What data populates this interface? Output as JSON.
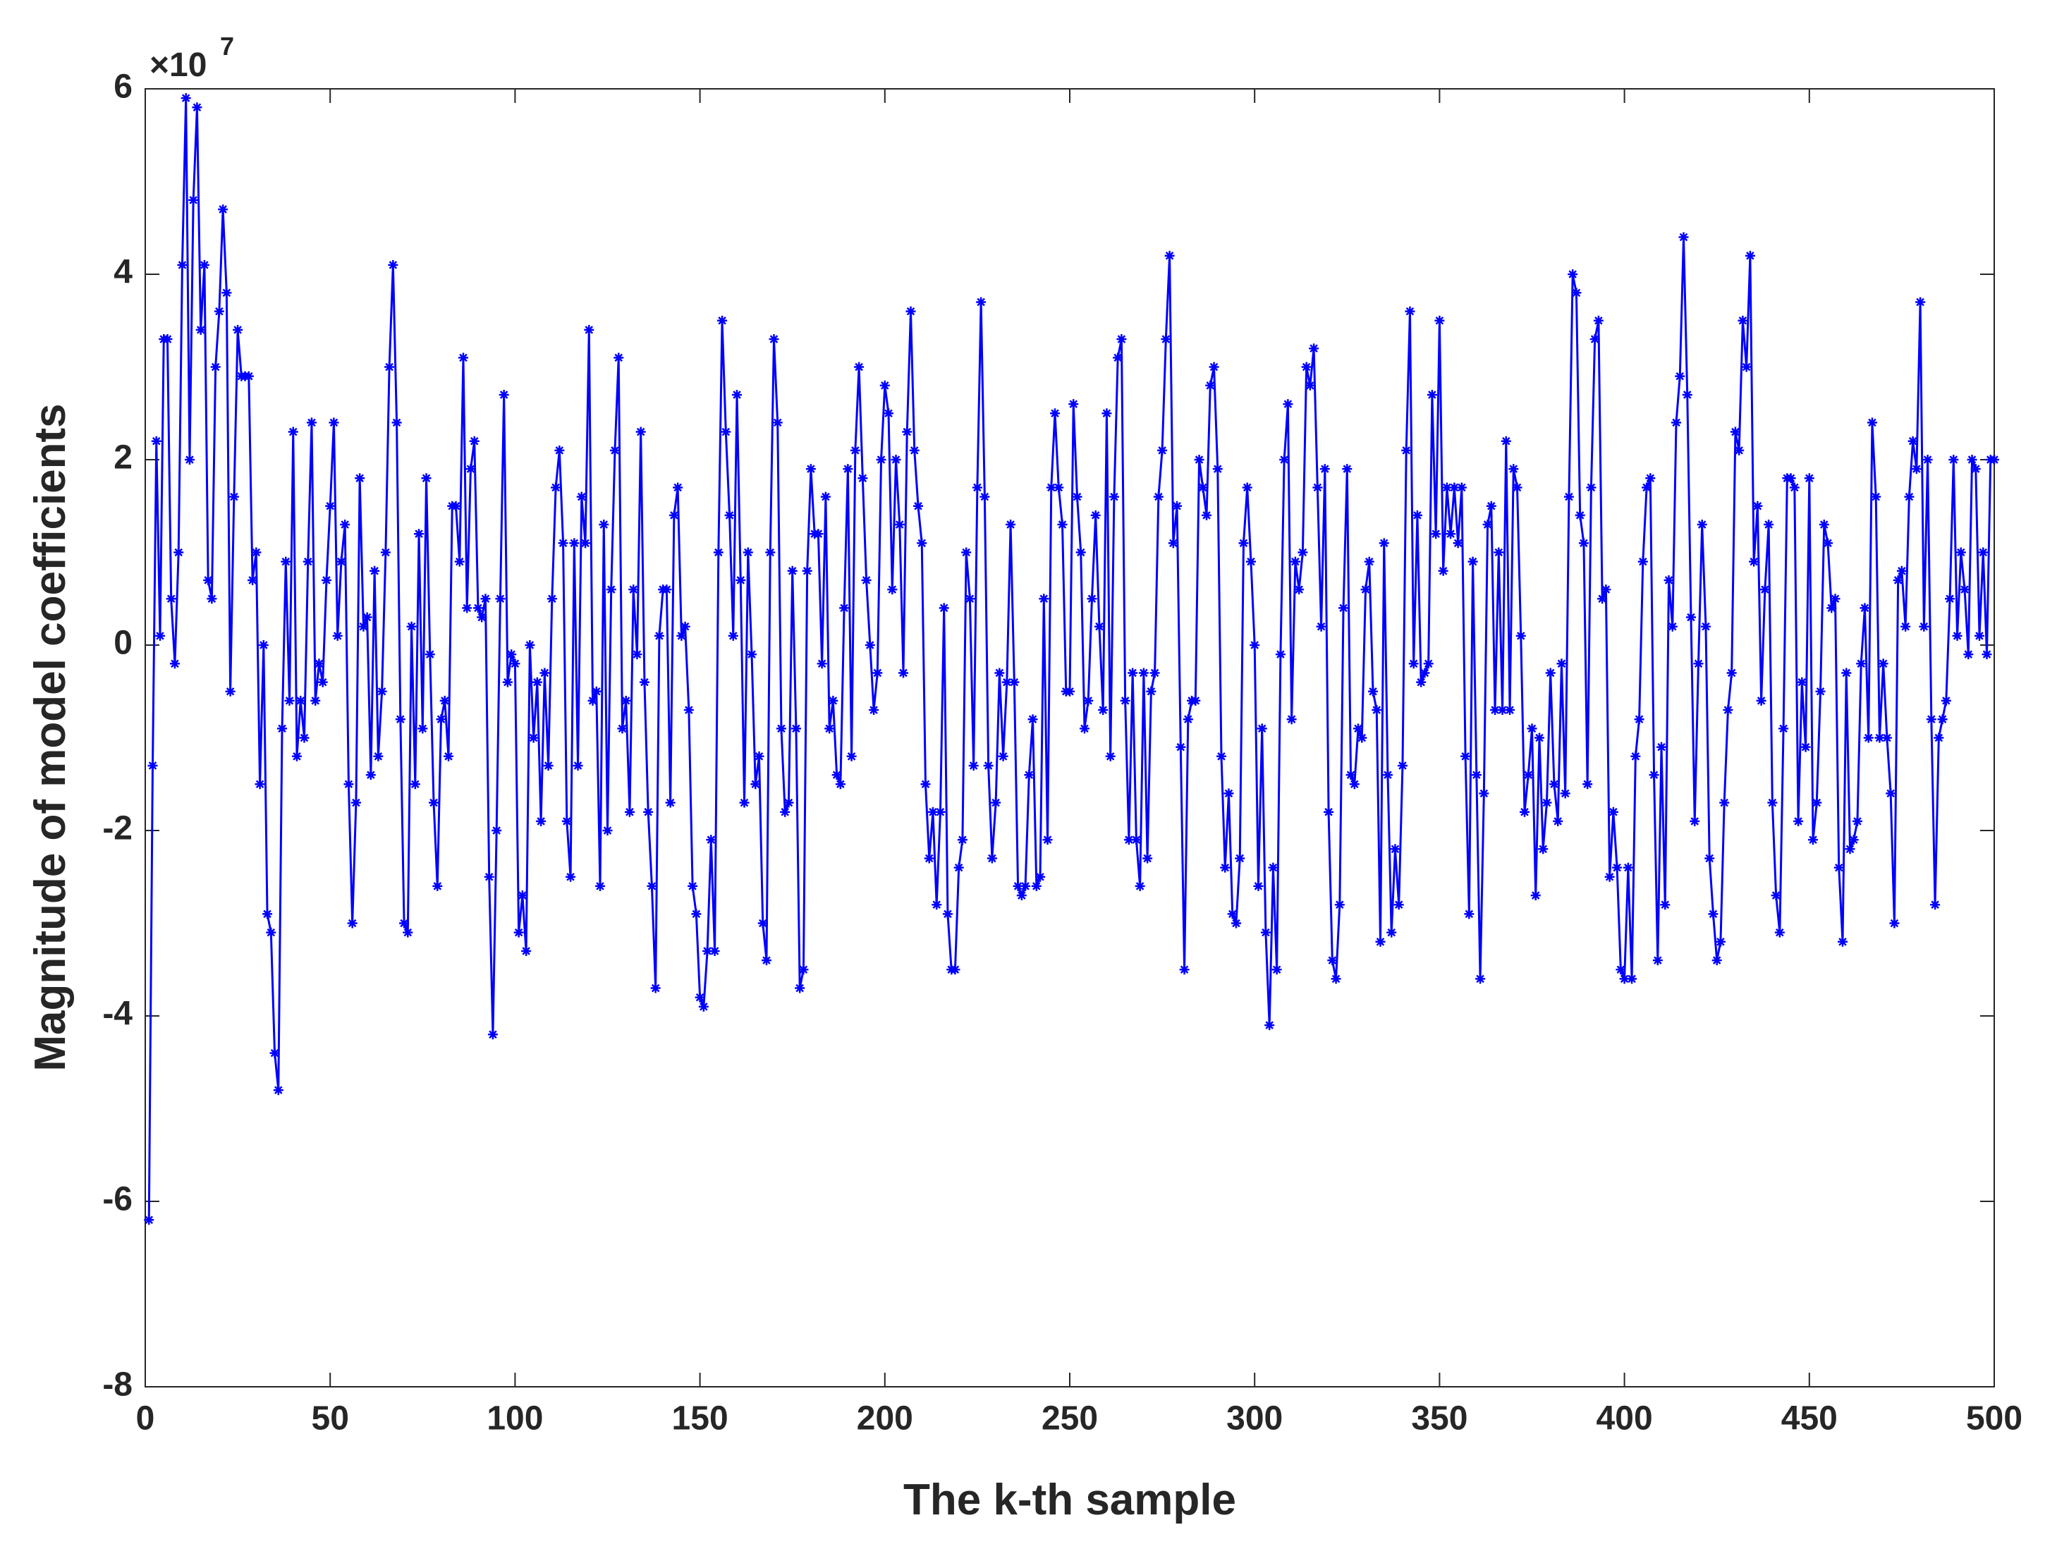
{
  "chart_data": {
    "type": "line",
    "xlabel": "The k-th sample",
    "ylabel": "Magnitude of model coefficients",
    "y_multiplier_base": "×10",
    "y_multiplier_exponent": "7",
    "color": "#0000ff",
    "marker": "asterisk",
    "box": true,
    "xlim": [
      0,
      500
    ],
    "xticks": [
      0,
      50,
      100,
      150,
      200,
      250,
      300,
      350,
      400,
      450,
      500
    ],
    "ylim": [
      -8,
      6
    ],
    "yticks": [
      -8,
      -6,
      -4,
      -2,
      0,
      2,
      4,
      6
    ],
    "x": [
      1,
      2,
      3,
      4,
      5,
      6,
      7,
      8,
      9,
      10,
      11,
      12,
      13,
      14,
      15,
      16,
      17,
      18,
      19,
      20,
      21,
      22,
      23,
      24,
      25,
      26,
      27,
      28,
      29,
      30,
      31,
      32,
      33,
      34,
      35,
      36,
      37,
      38,
      39,
      40,
      41,
      42,
      43,
      44,
      45,
      46,
      47,
      48,
      49,
      50,
      51,
      52,
      53,
      54,
      55,
      56,
      57,
      58,
      59,
      60,
      61,
      62,
      63,
      64,
      65,
      66,
      67,
      68,
      69,
      70,
      71,
      72,
      73,
      74,
      75,
      76,
      77,
      78,
      79,
      80,
      81,
      82,
      83,
      84,
      85,
      86,
      87,
      88,
      89,
      90,
      91,
      92,
      93,
      94,
      95,
      96,
      97,
      98,
      99,
      100,
      101,
      102,
      103,
      104,
      105,
      106,
      107,
      108,
      109,
      110,
      111,
      112,
      113,
      114,
      115,
      116,
      117,
      118,
      119,
      120,
      121,
      122,
      123,
      124,
      125,
      126,
      127,
      128,
      129,
      130,
      131,
      132,
      133,
      134,
      135,
      136,
      137,
      138,
      139,
      140,
      141,
      142,
      143,
      144,
      145,
      146,
      147,
      148,
      149,
      150,
      151,
      152,
      153,
      154,
      155,
      156,
      157,
      158,
      159,
      160,
      161,
      162,
      163,
      164,
      165,
      166,
      167,
      168,
      169,
      170,
      171,
      172,
      173,
      174,
      175,
      176,
      177,
      178,
      179,
      180,
      181,
      182,
      183,
      184,
      185,
      186,
      187,
      188,
      189,
      190,
      191,
      192,
      193,
      194,
      195,
      196,
      197,
      198,
      199,
      200,
      201,
      202,
      203,
      204,
      205,
      206,
      207,
      208,
      209,
      210,
      211,
      212,
      213,
      214,
      215,
      216,
      217,
      218,
      219,
      220,
      221,
      222,
      223,
      224,
      225,
      226,
      227,
      228,
      229,
      230,
      231,
      232,
      233,
      234,
      235,
      236,
      237,
      238,
      239,
      240,
      241,
      242,
      243,
      244,
      245,
      246,
      247,
      248,
      249,
      250,
      251,
      252,
      253,
      254,
      255,
      256,
      257,
      258,
      259,
      260,
      261,
      262,
      263,
      264,
      265,
      266,
      267,
      268,
      269,
      270,
      271,
      272,
      273,
      274,
      275,
      276,
      277,
      278,
      279,
      280,
      281,
      282,
      283,
      284,
      285,
      286,
      287,
      288,
      289,
      290,
      291,
      292,
      293,
      294,
      295,
      296,
      297,
      298,
      299,
      300,
      301,
      302,
      303,
      304,
      305,
      306,
      307,
      308,
      309,
      310,
      311,
      312,
      313,
      314,
      315,
      316,
      317,
      318,
      319,
      320,
      321,
      322,
      323,
      324,
      325,
      326,
      327,
      328,
      329,
      330,
      331,
      332,
      333,
      334,
      335,
      336,
      337,
      338,
      339,
      340,
      341,
      342,
      343,
      344,
      345,
      346,
      347,
      348,
      349,
      350,
      351,
      352,
      353,
      354,
      355,
      356,
      357,
      358,
      359,
      360,
      361,
      362,
      363,
      364,
      365,
      366,
      367,
      368,
      369,
      370,
      371,
      372,
      373,
      374,
      375,
      376,
      377,
      378,
      379,
      380,
      381,
      382,
      383,
      384,
      385,
      386,
      387,
      388,
      389,
      390,
      391,
      392,
      393,
      394,
      395,
      396,
      397,
      398,
      399,
      400,
      401,
      402,
      403,
      404,
      405,
      406,
      407,
      408,
      409,
      410,
      411,
      412,
      413,
      414,
      415,
      416,
      417,
      418,
      419,
      420,
      421,
      422,
      423,
      424,
      425,
      426,
      427,
      428,
      429,
      430,
      431,
      432,
      433,
      434,
      435,
      436,
      437,
      438,
      439,
      440,
      441,
      442,
      443,
      444,
      445,
      446,
      447,
      448,
      449,
      450,
      451,
      452,
      453,
      454,
      455,
      456,
      457,
      458,
      459,
      460,
      461,
      462,
      463,
      464,
      465,
      466,
      467,
      468,
      469,
      470,
      471,
      472,
      473,
      474,
      475,
      476,
      477,
      478,
      479,
      480,
      481,
      482,
      483,
      484,
      485,
      486,
      487,
      488,
      489,
      490,
      491,
      492,
      493,
      494,
      495,
      496,
      497,
      498,
      499,
      500
    ],
    "values": [
      -6.2,
      -1.3,
      2.2,
      0.1,
      3.3,
      3.3,
      0.5,
      -0.2,
      1.0,
      4.1,
      5.9,
      2.0,
      4.8,
      5.8,
      3.4,
      4.1,
      0.7,
      0.5,
      3.0,
      3.6,
      4.7,
      3.8,
      -0.5,
      1.6,
      3.4,
      2.9,
      2.9,
      2.9,
      0.7,
      1.0,
      -1.5,
      0.0,
      -2.9,
      -3.1,
      -4.4,
      -4.8,
      -0.9,
      0.9,
      -0.6,
      2.3,
      -1.2,
      -0.6,
      -1.0,
      0.9,
      2.4,
      -0.6,
      -0.2,
      -0.4,
      0.7,
      1.5,
      2.4,
      0.1,
      0.9,
      1.3,
      -1.5,
      -3.0,
      -1.7,
      1.8,
      0.2,
      0.3,
      -1.4,
      0.8,
      -1.2,
      -0.5,
      1.0,
      3.0,
      4.1,
      2.4,
      -0.8,
      -3.0,
      -3.1,
      0.2,
      -1.5,
      1.2,
      -0.9,
      1.8,
      -0.1,
      -1.7,
      -2.6,
      -0.8,
      -0.6,
      -1.2,
      1.5,
      1.5,
      0.9,
      3.1,
      0.4,
      1.9,
      2.2,
      0.4,
      0.3,
      0.5,
      -2.5,
      -4.2,
      -2.0,
      0.5,
      2.7,
      -0.4,
      -0.1,
      -0.2,
      -3.1,
      -2.7,
      -3.3,
      0.0,
      -1.0,
      -0.4,
      -1.9,
      -0.3,
      -1.3,
      0.5,
      1.7,
      2.1,
      1.1,
      -1.9,
      -2.5,
      1.1,
      -1.3,
      1.6,
      1.1,
      3.4,
      -0.6,
      -0.5,
      -2.6,
      1.3,
      -2.0,
      0.6,
      2.1,
      3.1,
      -0.9,
      -0.6,
      -1.8,
      0.6,
      -0.1,
      2.3,
      -0.4,
      -1.8,
      -2.6,
      -3.7,
      0.1,
      0.6,
      0.6,
      -1.7,
      1.4,
      1.7,
      0.1,
      0.2,
      -0.7,
      -2.6,
      -2.9,
      -3.8,
      -3.9,
      -3.3,
      -2.1,
      -3.3,
      1.0,
      3.5,
      2.3,
      1.4,
      0.1,
      2.7,
      0.7,
      -1.7,
      1.0,
      -0.1,
      -1.5,
      -1.2,
      -3.0,
      -3.4,
      1.0,
      3.3,
      2.4,
      -0.9,
      -1.8,
      -1.7,
      0.8,
      -0.9,
      -3.7,
      -3.5,
      0.8,
      1.9,
      1.2,
      1.2,
      -0.2,
      1.6,
      -0.9,
      -0.6,
      -1.4,
      -1.5,
      0.4,
      1.9,
      -1.2,
      2.1,
      3.0,
      1.8,
      0.7,
      0.0,
      -0.7,
      -0.3,
      2.0,
      2.8,
      2.5,
      0.6,
      2.0,
      1.3,
      -0.3,
      2.3,
      3.6,
      2.1,
      1.5,
      1.1,
      -1.5,
      -2.3,
      -1.8,
      -2.8,
      -1.8,
      0.4,
      -2.9,
      -3.5,
      -3.5,
      -2.4,
      -2.1,
      1.0,
      0.5,
      -1.3,
      1.7,
      3.7,
      1.6,
      -1.3,
      -2.3,
      -1.7,
      -0.3,
      -1.2,
      -0.4,
      1.3,
      -0.4,
      -2.6,
      -2.7,
      -2.6,
      -1.4,
      -0.8,
      -2.6,
      -2.5,
      0.5,
      -2.1,
      1.7,
      2.5,
      1.7,
      1.3,
      -0.5,
      -0.5,
      2.6,
      1.6,
      1.0,
      -0.9,
      -0.6,
      0.5,
      1.4,
      0.2,
      -0.7,
      2.5,
      -1.2,
      1.6,
      3.1,
      3.3,
      -0.6,
      -2.1,
      -0.3,
      -2.1,
      -2.6,
      -0.3,
      -2.3,
      -0.5,
      -0.3,
      1.6,
      2.1,
      3.3,
      4.2,
      1.1,
      1.5,
      -1.1,
      -3.5,
      -0.8,
      -0.6,
      -0.6,
      2.0,
      1.7,
      1.4,
      2.8,
      3.0,
      1.9,
      -1.2,
      -2.4,
      -1.6,
      -2.9,
      -3.0,
      -2.3,
      1.1,
      1.7,
      0.9,
      0.0,
      -2.6,
      -0.9,
      -3.1,
      -4.1,
      -2.4,
      -3.5,
      -0.1,
      2.0,
      2.6,
      -0.8,
      0.9,
      0.6,
      1.0,
      3.0,
      2.8,
      3.2,
      1.7,
      0.2,
      1.9,
      -1.8,
      -3.4,
      -3.6,
      -2.8,
      0.4,
      1.9,
      -1.4,
      -1.5,
      -0.9,
      -1.0,
      0.6,
      0.9,
      -0.5,
      -0.7,
      -3.2,
      1.1,
      -1.4,
      -3.1,
      -2.2,
      -2.8,
      -1.3,
      2.1,
      3.6,
      -0.2,
      1.4,
      -0.4,
      -0.3,
      -0.2,
      2.7,
      1.2,
      3.5,
      0.8,
      1.7,
      1.2,
      1.7,
      1.1,
      1.7,
      -1.2,
      -2.9,
      0.9,
      -1.4,
      -3.6,
      -1.6,
      1.3,
      1.5,
      -0.7,
      1.0,
      -0.7,
      2.2,
      -0.7,
      1.9,
      1.7,
      0.1,
      -1.8,
      -1.4,
      -0.9,
      -2.7,
      -1.0,
      -2.2,
      -1.7,
      -0.3,
      -1.5,
      -1.9,
      -0.2,
      -1.6,
      1.6,
      4.0,
      3.8,
      1.4,
      1.1,
      -1.5,
      1.7,
      3.3,
      3.5,
      0.5,
      0.6,
      -2.5,
      -1.8,
      -2.4,
      -3.5,
      -3.6,
      -2.4,
      -3.6,
      -1.2,
      -0.8,
      0.9,
      1.7,
      1.8,
      -1.4,
      -3.4,
      -1.1,
      -2.8,
      0.7,
      0.2,
      2.4,
      2.9,
      4.4,
      2.7,
      0.3,
      -1.9,
      -0.2,
      1.3,
      0.2,
      -2.3,
      -2.9,
      -3.4,
      -3.2,
      -1.7,
      -0.7,
      -0.3,
      2.3,
      2.1,
      3.5,
      3.0,
      4.2,
      0.9,
      1.5,
      -0.6,
      0.6,
      1.3,
      -1.7,
      -2.7,
      -3.1,
      -0.9,
      1.8,
      1.8,
      1.7,
      -1.9,
      -0.4,
      -1.1,
      1.8,
      -2.1,
      -1.7,
      -0.5,
      1.3,
      1.1,
      0.4,
      0.5,
      -2.4,
      -3.2,
      -0.3,
      -2.2,
      -2.1,
      -1.9,
      -0.2,
      0.4,
      -1.0,
      2.4,
      1.6,
      -1.0,
      -0.2,
      -1.0,
      -1.6,
      -3.0,
      0.7,
      0.8,
      0.2,
      1.6,
      2.2,
      1.9,
      3.7,
      0.2,
      2.0,
      -0.8,
      -2.8,
      -1.0,
      -0.8,
      -0.6,
      0.5,
      2.0,
      0.1,
      1.0,
      0.6,
      -0.1,
      2.0,
      1.9,
      0.1,
      1.0,
      -0.1,
      2.0,
      2.0
    ]
  }
}
